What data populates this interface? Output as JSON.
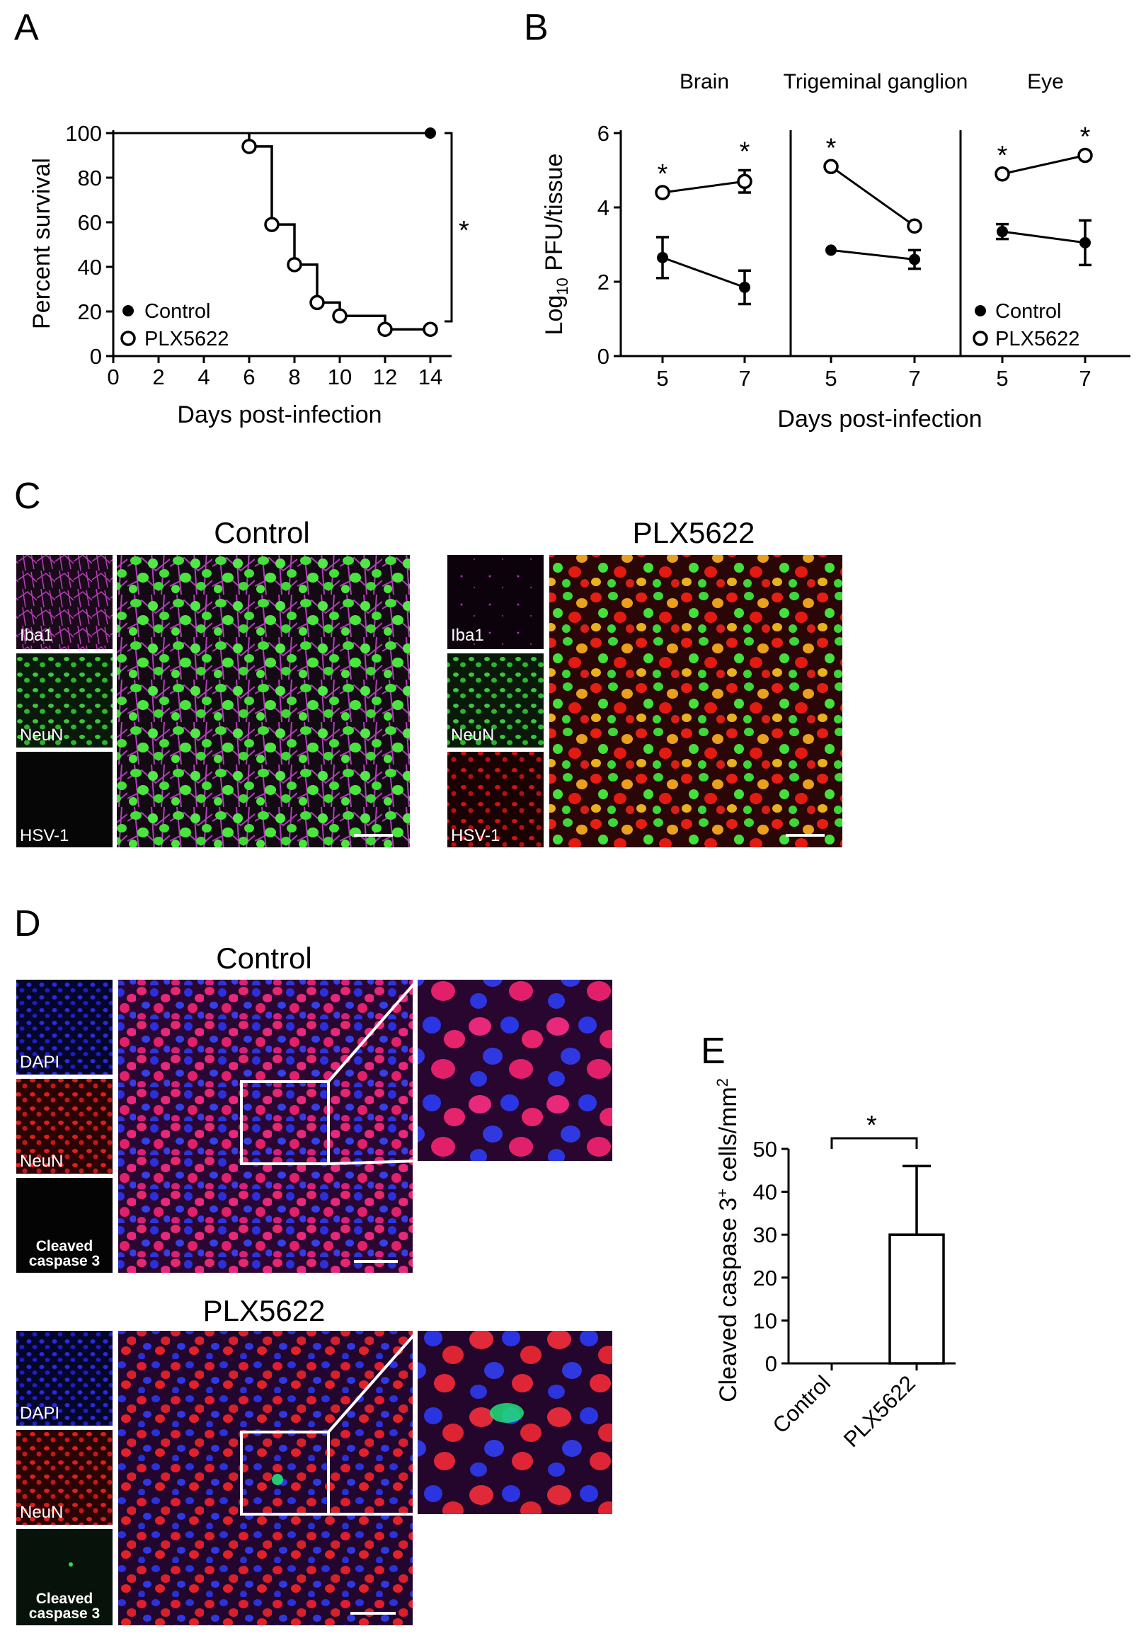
{
  "panel_labels": [
    "A",
    "B",
    "C",
    "D",
    "E"
  ],
  "colors": {
    "iba1": "#cc33cc",
    "neun_green": "#33dd22",
    "hsv1": "#ee1a1a",
    "dapi": "#1a22dd",
    "neun_red": "#ee1a3a",
    "caspase": "#22ee66",
    "line": "#000000"
  },
  "chart_data": [
    {
      "id": "A",
      "type": "line",
      "subtype": "step-survival",
      "xlabel": "Days post-infection",
      "ylabel": "Percent survival",
      "xlim": [
        0,
        14
      ],
      "ylim": [
        0,
        100
      ],
      "xticks": [
        "0",
        "2",
        "4",
        "6",
        "8",
        "10",
        "12",
        "14"
      ],
      "yticks": [
        "0",
        "20",
        "40",
        "60",
        "80",
        "100"
      ],
      "legend": {
        "placement": "bottom-left"
      },
      "series": [
        {
          "name": "Control",
          "marker": "filled",
          "x": [
            0,
            14
          ],
          "y": [
            100,
            100
          ],
          "points_x": [
            14
          ],
          "points_y": [
            100
          ]
        },
        {
          "name": "PLX5622",
          "marker": "open",
          "x": [
            6,
            7,
            8,
            9,
            10,
            12,
            14
          ],
          "y": [
            94,
            59,
            41,
            24,
            18,
            12,
            12
          ]
        }
      ],
      "annotation": "*"
    },
    {
      "id": "B",
      "type": "line",
      "xlabel": "Days post-infection",
      "ylabel_main": "Log",
      "ylabel_sub": "10",
      "ylabel_rest": " PFU/tissue",
      "ylim": [
        0,
        6
      ],
      "yticks": [
        "0",
        "2",
        "4",
        "6"
      ],
      "legend": {
        "placement": "bottom-right"
      },
      "legend_entries": [
        "Control",
        "PLX5622"
      ],
      "facets": [
        {
          "title": "Brain",
          "x": [
            "5",
            "7"
          ],
          "series": [
            {
              "name": "Control",
              "marker": "filled",
              "values": [
                2.65,
                1.85
              ],
              "err": [
                0.55,
                0.45
              ]
            },
            {
              "name": "PLX5622",
              "marker": "open",
              "values": [
                4.4,
                4.7
              ],
              "err": [
                0.0,
                0.3
              ]
            }
          ],
          "stars": [
            true,
            true
          ]
        },
        {
          "title": "Trigeminal ganglion",
          "x": [
            "5",
            "7"
          ],
          "series": [
            {
              "name": "Control",
              "marker": "filled",
              "values": [
                2.85,
                2.6
              ],
              "err": [
                0.0,
                0.25
              ]
            },
            {
              "name": "PLX5622",
              "marker": "open",
              "values": [
                5.1,
                3.5
              ],
              "err": [
                0.0,
                0.0
              ]
            }
          ],
          "stars": [
            true,
            false
          ]
        },
        {
          "title": "Eye",
          "x": [
            "5",
            "7"
          ],
          "series": [
            {
              "name": "Control",
              "marker": "filled",
              "values": [
                3.35,
                3.05
              ],
              "err": [
                0.2,
                0.6
              ]
            },
            {
              "name": "PLX5622",
              "marker": "open",
              "values": [
                4.9,
                5.4
              ],
              "err": [
                0.0,
                0.0
              ]
            }
          ],
          "stars": [
            true,
            true
          ]
        }
      ]
    },
    {
      "id": "E",
      "type": "bar",
      "categories": [
        "Control",
        "PLX5622"
      ],
      "values": [
        0,
        30
      ],
      "err": [
        0,
        16
      ],
      "ylabel_main": "Cleaved caspase 3",
      "ylabel_sup1": "+",
      "ylabel_mid": " cells/mm",
      "ylabel_sup2": "2",
      "ylim": [
        0,
        50
      ],
      "yticks": [
        "0",
        "10",
        "20",
        "30",
        "40",
        "50"
      ],
      "annotation": "*"
    }
  ],
  "panel_c": {
    "control": {
      "title": "Control",
      "channels": [
        "Iba1",
        "NeuN",
        "HSV-1"
      ]
    },
    "plx": {
      "title": "PLX5622",
      "channels": [
        "Iba1",
        "NeuN",
        "HSV-1"
      ]
    }
  },
  "panel_d": {
    "control": {
      "title": "Control",
      "channels": [
        "DAPI",
        "NeuN"
      ],
      "caspase": [
        "Cleaved",
        "caspase 3"
      ]
    },
    "plx": {
      "title": "PLX5622",
      "channels": [
        "DAPI",
        "NeuN"
      ],
      "caspase": [
        "Cleaved",
        "caspase 3"
      ]
    }
  }
}
